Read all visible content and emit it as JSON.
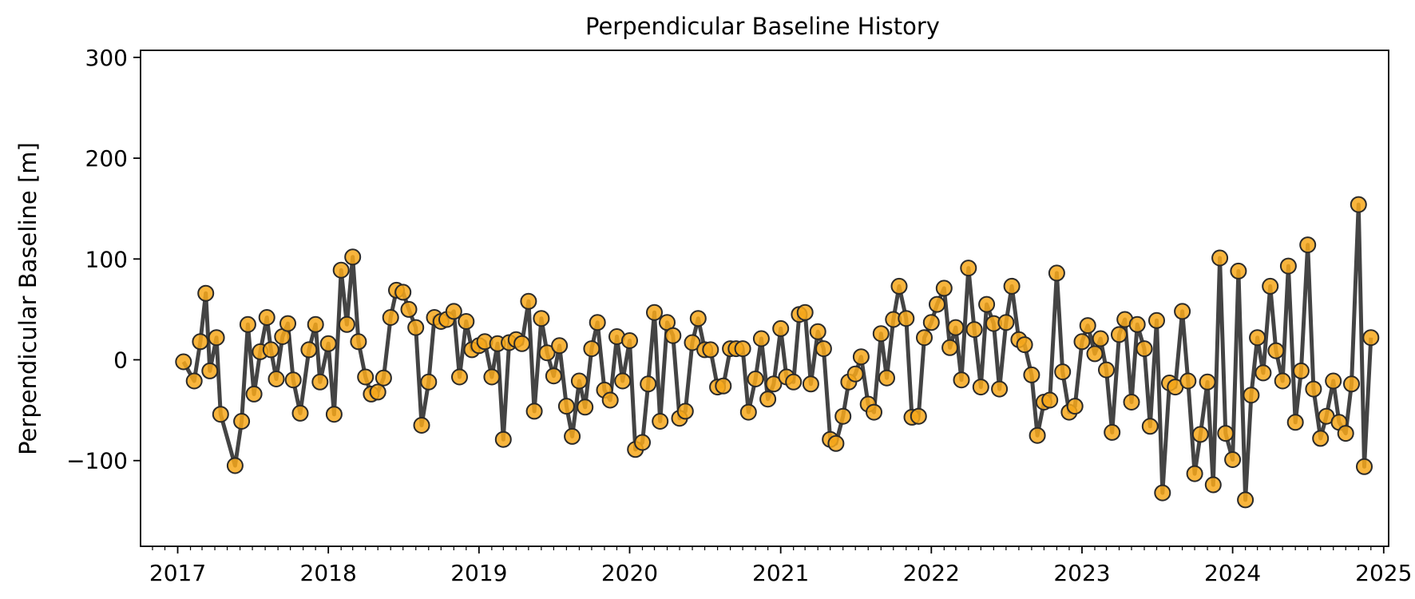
{
  "chart_data": {
    "type": "line",
    "title": "Perpendicular Baseline History",
    "xlabel": "",
    "ylabel": "Perpendicular Baseline [m]",
    "x_ticks": [
      "2017",
      "2018",
      "2019",
      "2020",
      "2021",
      "2022",
      "2023",
      "2024",
      "2025"
    ],
    "y_ticks": [
      {
        "value": 300,
        "label": "300"
      },
      {
        "value": 200,
        "label": "200"
      },
      {
        "value": 100,
        "label": "100"
      },
      {
        "value": 0,
        "label": "0"
      },
      {
        "value": -100,
        "label": "−100"
      }
    ],
    "xlim": [
      "2016-10-03",
      "2025-01-13"
    ],
    "ylim": [
      -185,
      307
    ],
    "grid": false,
    "series": [
      {
        "line_color": "#3a3a3a",
        "marker_fill": "#f7a81b",
        "marker_edge": "#2a2a2a",
        "points": [
          {
            "date": "2017-01-15",
            "value": -2
          },
          {
            "date": "2017-02-10",
            "value": -21
          },
          {
            "date": "2017-02-25",
            "value": 18
          },
          {
            "date": "2017-03-10",
            "value": 66
          },
          {
            "date": "2017-03-20",
            "value": -11
          },
          {
            "date": "2017-04-05",
            "value": 22
          },
          {
            "date": "2017-04-15",
            "value": -54
          },
          {
            "date": "2017-05-20",
            "value": -105
          },
          {
            "date": "2017-06-05",
            "value": -61
          },
          {
            "date": "2017-06-20",
            "value": 35
          },
          {
            "date": "2017-07-05",
            "value": -34
          },
          {
            "date": "2017-07-20",
            "value": 8
          },
          {
            "date": "2017-08-05",
            "value": 42
          },
          {
            "date": "2017-08-15",
            "value": 10
          },
          {
            "date": "2017-08-28",
            "value": -19
          },
          {
            "date": "2017-09-12",
            "value": 23
          },
          {
            "date": "2017-09-25",
            "value": 36
          },
          {
            "date": "2017-10-08",
            "value": -20
          },
          {
            "date": "2017-10-25",
            "value": -53
          },
          {
            "date": "2017-11-15",
            "value": 10
          },
          {
            "date": "2017-12-01",
            "value": 35
          },
          {
            "date": "2017-12-12",
            "value": -22
          },
          {
            "date": "2018-01-01",
            "value": 16
          },
          {
            "date": "2018-01-15",
            "value": -54
          },
          {
            "date": "2018-02-01",
            "value": 89
          },
          {
            "date": "2018-02-15",
            "value": 35
          },
          {
            "date": "2018-03-01",
            "value": 102
          },
          {
            "date": "2018-03-15",
            "value": 18
          },
          {
            "date": "2018-04-01",
            "value": -17
          },
          {
            "date": "2018-04-15",
            "value": -34
          },
          {
            "date": "2018-05-01",
            "value": -32
          },
          {
            "date": "2018-05-15",
            "value": -18
          },
          {
            "date": "2018-06-01",
            "value": 42
          },
          {
            "date": "2018-06-15",
            "value": 69
          },
          {
            "date": "2018-07-01",
            "value": 67
          },
          {
            "date": "2018-07-15",
            "value": 50
          },
          {
            "date": "2018-08-01",
            "value": 32
          },
          {
            "date": "2018-08-15",
            "value": -65
          },
          {
            "date": "2018-09-01",
            "value": -22
          },
          {
            "date": "2018-09-15",
            "value": 42
          },
          {
            "date": "2018-10-01",
            "value": 38
          },
          {
            "date": "2018-10-15",
            "value": 40
          },
          {
            "date": "2018-11-01",
            "value": 48
          },
          {
            "date": "2018-11-15",
            "value": -17
          },
          {
            "date": "2018-12-01",
            "value": 38
          },
          {
            "date": "2018-12-15",
            "value": 10
          },
          {
            "date": "2019-01-01",
            "value": 14
          },
          {
            "date": "2019-01-15",
            "value": 18
          },
          {
            "date": "2019-02-01",
            "value": -17
          },
          {
            "date": "2019-02-15",
            "value": 16
          },
          {
            "date": "2019-03-01",
            "value": -79
          },
          {
            "date": "2019-03-15",
            "value": 17
          },
          {
            "date": "2019-04-01",
            "value": 20
          },
          {
            "date": "2019-04-15",
            "value": 16
          },
          {
            "date": "2019-05-01",
            "value": 58
          },
          {
            "date": "2019-05-15",
            "value": -51
          },
          {
            "date": "2019-06-01",
            "value": 41
          },
          {
            "date": "2019-06-15",
            "value": 7
          },
          {
            "date": "2019-07-01",
            "value": -16
          },
          {
            "date": "2019-07-15",
            "value": 14
          },
          {
            "date": "2019-08-01",
            "value": -46
          },
          {
            "date": "2019-08-15",
            "value": -76
          },
          {
            "date": "2019-09-01",
            "value": -21
          },
          {
            "date": "2019-09-15",
            "value": -47
          },
          {
            "date": "2019-10-01",
            "value": 11
          },
          {
            "date": "2019-10-15",
            "value": 37
          },
          {
            "date": "2019-11-01",
            "value": -30
          },
          {
            "date": "2019-11-15",
            "value": -40
          },
          {
            "date": "2019-12-01",
            "value": 23
          },
          {
            "date": "2019-12-15",
            "value": -21
          },
          {
            "date": "2020-01-01",
            "value": 19
          },
          {
            "date": "2020-01-15",
            "value": -89
          },
          {
            "date": "2020-02-01",
            "value": -82
          },
          {
            "date": "2020-02-15",
            "value": -24
          },
          {
            "date": "2020-03-01",
            "value": 47
          },
          {
            "date": "2020-03-15",
            "value": -61
          },
          {
            "date": "2020-04-01",
            "value": 37
          },
          {
            "date": "2020-04-15",
            "value": 24
          },
          {
            "date": "2020-05-01",
            "value": -58
          },
          {
            "date": "2020-05-15",
            "value": -51
          },
          {
            "date": "2020-06-01",
            "value": 17
          },
          {
            "date": "2020-06-15",
            "value": 41
          },
          {
            "date": "2020-07-01",
            "value": 10
          },
          {
            "date": "2020-07-15",
            "value": 10
          },
          {
            "date": "2020-08-01",
            "value": -27
          },
          {
            "date": "2020-08-15",
            "value": -26
          },
          {
            "date": "2020-09-01",
            "value": 11
          },
          {
            "date": "2020-09-15",
            "value": 11
          },
          {
            "date": "2020-10-01",
            "value": 11
          },
          {
            "date": "2020-10-15",
            "value": -52
          },
          {
            "date": "2020-11-01",
            "value": -19
          },
          {
            "date": "2020-11-15",
            "value": 21
          },
          {
            "date": "2020-12-01",
            "value": -39
          },
          {
            "date": "2020-12-15",
            "value": -24
          },
          {
            "date": "2021-01-01",
            "value": 31
          },
          {
            "date": "2021-01-15",
            "value": -17
          },
          {
            "date": "2021-02-01",
            "value": -22
          },
          {
            "date": "2021-02-15",
            "value": 45
          },
          {
            "date": "2021-03-01",
            "value": 47
          },
          {
            "date": "2021-03-15",
            "value": -24
          },
          {
            "date": "2021-04-01",
            "value": 28
          },
          {
            "date": "2021-04-15",
            "value": 11
          },
          {
            "date": "2021-05-01",
            "value": -79
          },
          {
            "date": "2021-05-15",
            "value": -83
          },
          {
            "date": "2021-06-01",
            "value": -56
          },
          {
            "date": "2021-06-15",
            "value": -22
          },
          {
            "date": "2021-07-01",
            "value": -14
          },
          {
            "date": "2021-07-15",
            "value": 3
          },
          {
            "date": "2021-08-01",
            "value": -44
          },
          {
            "date": "2021-08-15",
            "value": -52
          },
          {
            "date": "2021-09-01",
            "value": 26
          },
          {
            "date": "2021-09-15",
            "value": -18
          },
          {
            "date": "2021-10-01",
            "value": 40
          },
          {
            "date": "2021-10-15",
            "value": 73
          },
          {
            "date": "2021-11-01",
            "value": 41
          },
          {
            "date": "2021-11-15",
            "value": -57
          },
          {
            "date": "2021-12-01",
            "value": -56
          },
          {
            "date": "2021-12-15",
            "value": 22
          },
          {
            "date": "2022-01-01",
            "value": 37
          },
          {
            "date": "2022-01-15",
            "value": 55
          },
          {
            "date": "2022-02-01",
            "value": 71
          },
          {
            "date": "2022-02-15",
            "value": 12
          },
          {
            "date": "2022-03-01",
            "value": 32
          },
          {
            "date": "2022-03-15",
            "value": -20
          },
          {
            "date": "2022-04-01",
            "value": 91
          },
          {
            "date": "2022-04-15",
            "value": 30
          },
          {
            "date": "2022-05-01",
            "value": -27
          },
          {
            "date": "2022-05-15",
            "value": 55
          },
          {
            "date": "2022-06-01",
            "value": 36
          },
          {
            "date": "2022-06-15",
            "value": -29
          },
          {
            "date": "2022-07-01",
            "value": 37
          },
          {
            "date": "2022-07-15",
            "value": 73
          },
          {
            "date": "2022-08-01",
            "value": 20
          },
          {
            "date": "2022-08-15",
            "value": 15
          },
          {
            "date": "2022-09-01",
            "value": -15
          },
          {
            "date": "2022-09-15",
            "value": -75
          },
          {
            "date": "2022-10-01",
            "value": -42
          },
          {
            "date": "2022-10-15",
            "value": -40
          },
          {
            "date": "2022-11-01",
            "value": 86
          },
          {
            "date": "2022-11-15",
            "value": -12
          },
          {
            "date": "2022-12-01",
            "value": -52
          },
          {
            "date": "2022-12-15",
            "value": -46
          },
          {
            "date": "2023-01-01",
            "value": 18
          },
          {
            "date": "2023-01-15",
            "value": 34
          },
          {
            "date": "2023-02-01",
            "value": 6
          },
          {
            "date": "2023-02-15",
            "value": 21
          },
          {
            "date": "2023-03-01",
            "value": -10
          },
          {
            "date": "2023-03-15",
            "value": -72
          },
          {
            "date": "2023-04-01",
            "value": 25
          },
          {
            "date": "2023-04-15",
            "value": 40
          },
          {
            "date": "2023-05-01",
            "value": -42
          },
          {
            "date": "2023-05-15",
            "value": 35
          },
          {
            "date": "2023-06-01",
            "value": 11
          },
          {
            "date": "2023-06-15",
            "value": -66
          },
          {
            "date": "2023-07-01",
            "value": 39
          },
          {
            "date": "2023-07-15",
            "value": -132
          },
          {
            "date": "2023-08-01",
            "value": -23
          },
          {
            "date": "2023-08-15",
            "value": -27
          },
          {
            "date": "2023-09-01",
            "value": 48
          },
          {
            "date": "2023-09-15",
            "value": -21
          },
          {
            "date": "2023-10-01",
            "value": -113
          },
          {
            "date": "2023-10-15",
            "value": -74
          },
          {
            "date": "2023-11-01",
            "value": -22
          },
          {
            "date": "2023-11-15",
            "value": -124
          },
          {
            "date": "2023-12-01",
            "value": 101
          },
          {
            "date": "2023-12-15",
            "value": -73
          },
          {
            "date": "2024-01-01",
            "value": -99
          },
          {
            "date": "2024-01-15",
            "value": 88
          },
          {
            "date": "2024-02-01",
            "value": -139
          },
          {
            "date": "2024-02-15",
            "value": -35
          },
          {
            "date": "2024-03-01",
            "value": 22
          },
          {
            "date": "2024-03-15",
            "value": -13
          },
          {
            "date": "2024-04-01",
            "value": 73
          },
          {
            "date": "2024-04-15",
            "value": 9
          },
          {
            "date": "2024-05-01",
            "value": -21
          },
          {
            "date": "2024-05-15",
            "value": 93
          },
          {
            "date": "2024-06-01",
            "value": -62
          },
          {
            "date": "2024-06-15",
            "value": -11
          },
          {
            "date": "2024-07-01",
            "value": 114
          },
          {
            "date": "2024-07-15",
            "value": -29
          },
          {
            "date": "2024-08-01",
            "value": -78
          },
          {
            "date": "2024-08-15",
            "value": -56
          },
          {
            "date": "2024-09-01",
            "value": -21
          },
          {
            "date": "2024-09-15",
            "value": -62
          },
          {
            "date": "2024-10-01",
            "value": -73
          },
          {
            "date": "2024-10-15",
            "value": -24
          },
          {
            "date": "2024-11-01",
            "value": 154
          },
          {
            "date": "2024-11-15",
            "value": -106
          },
          {
            "date": "2024-12-01",
            "value": 22
          }
        ]
      }
    ]
  }
}
